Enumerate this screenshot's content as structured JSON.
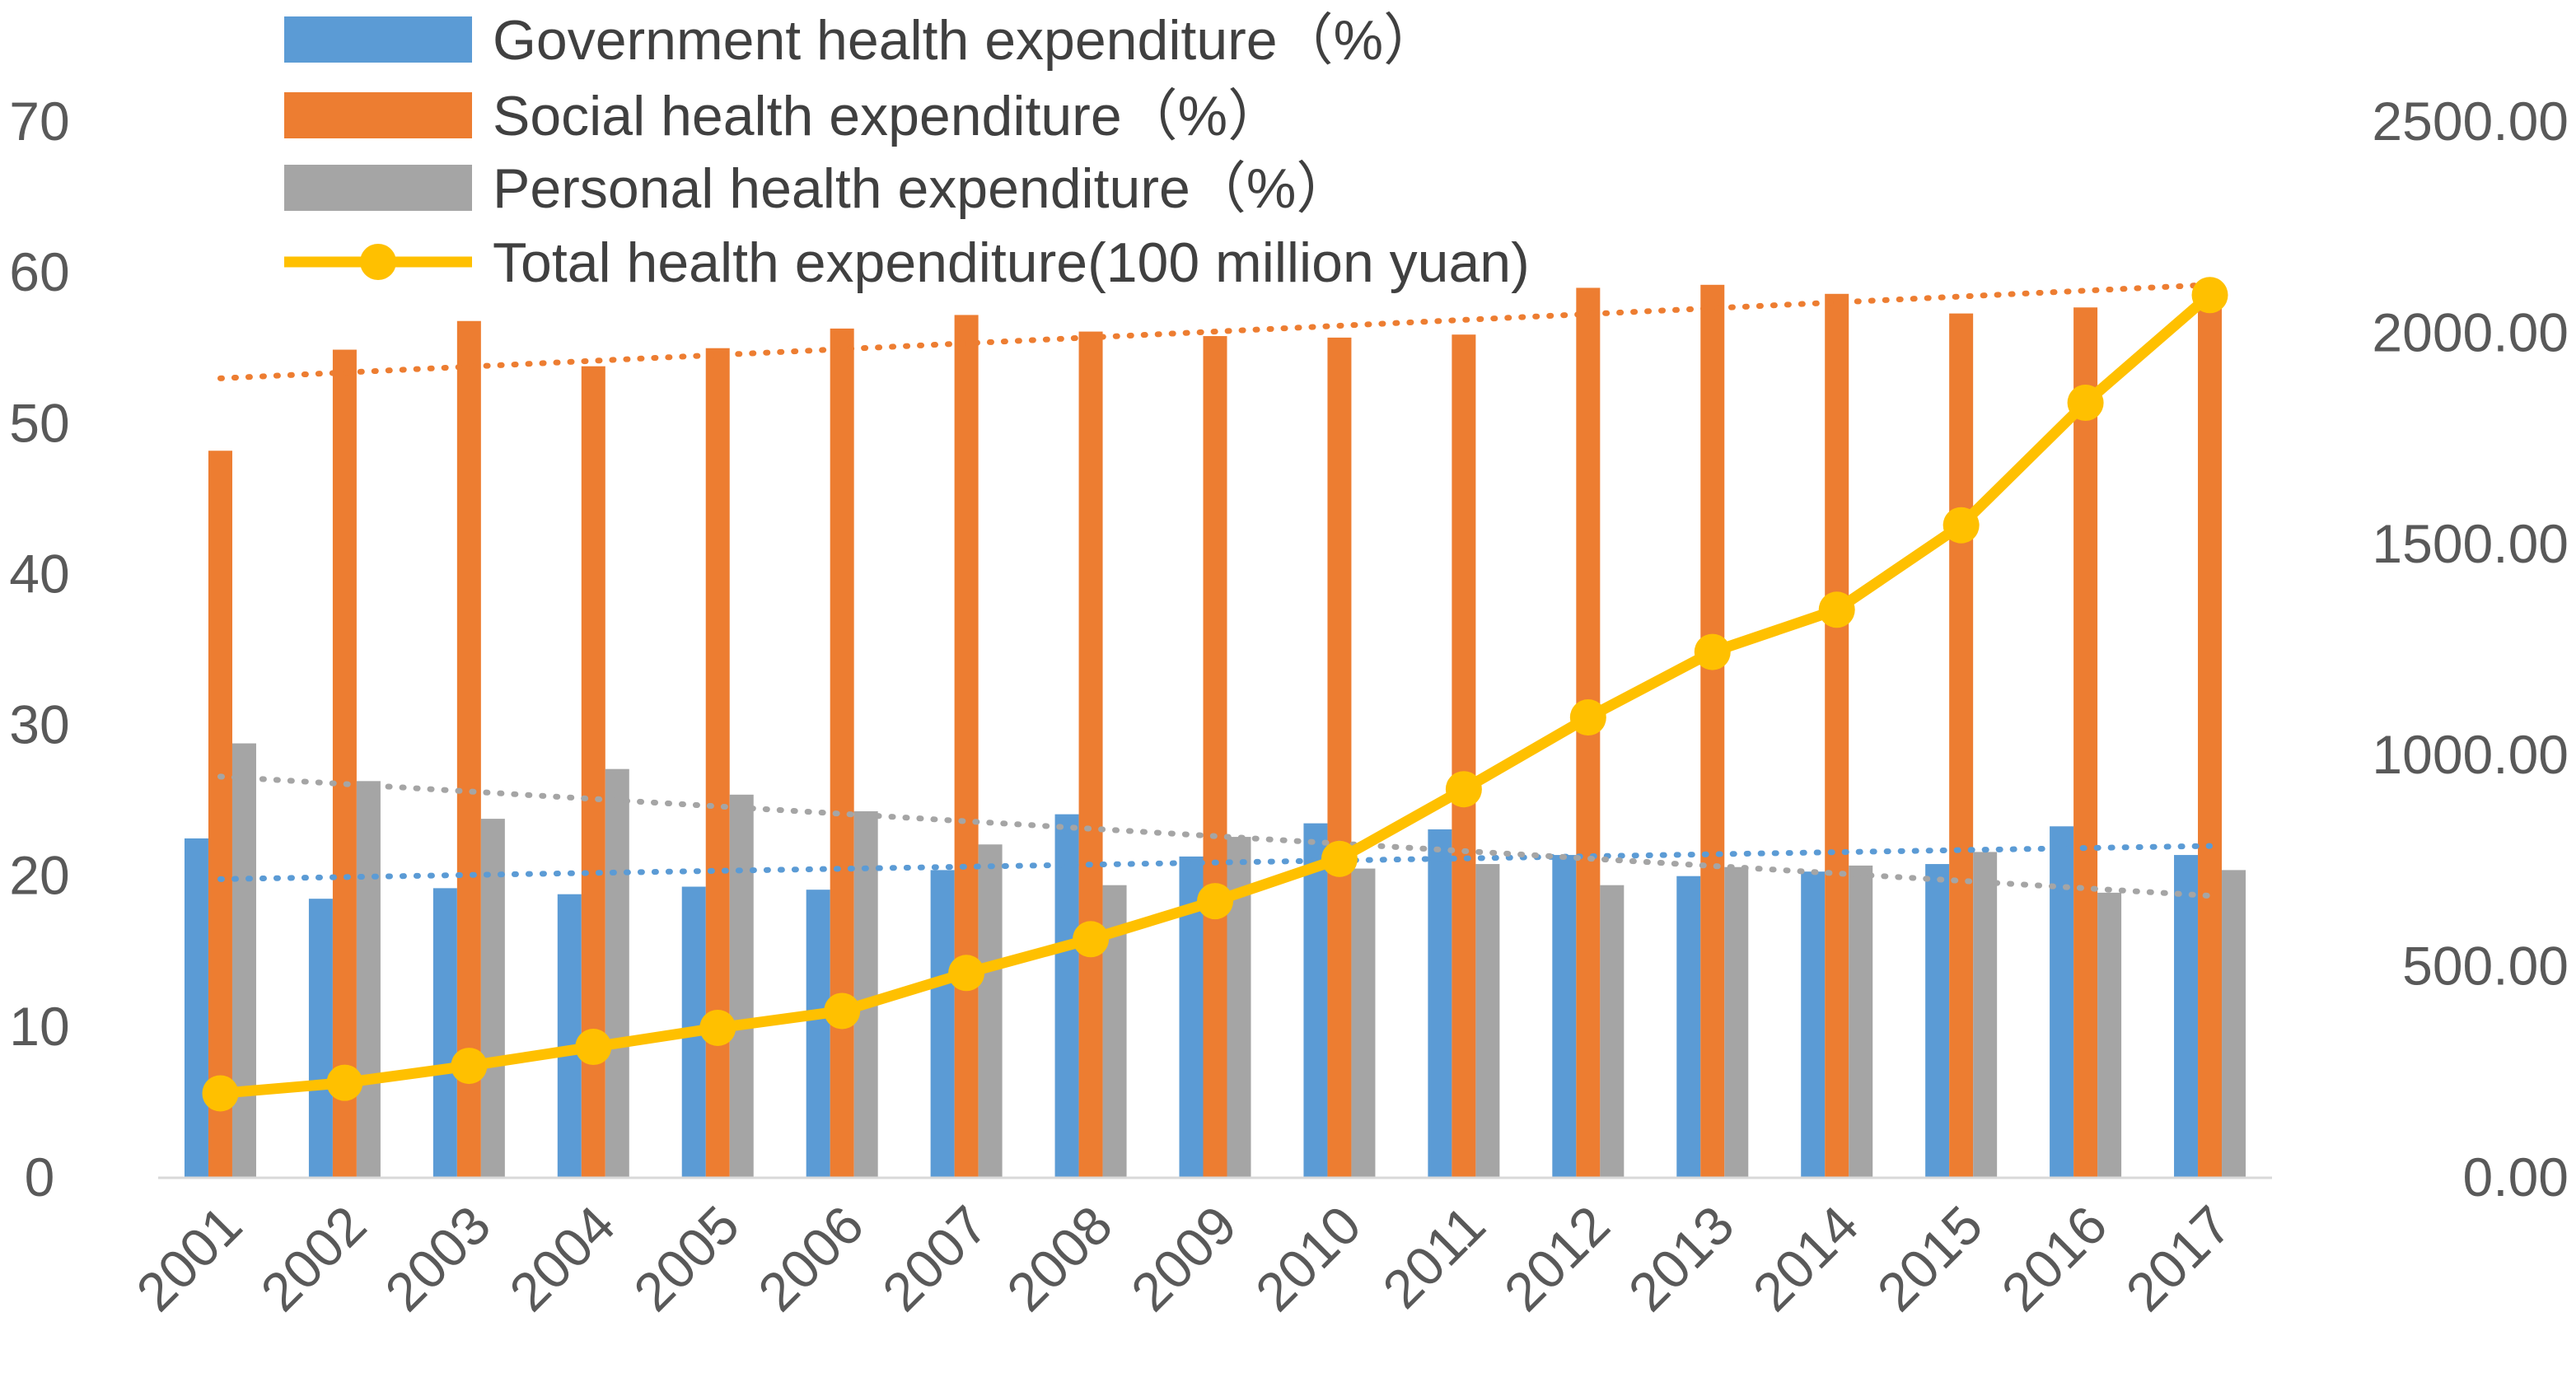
{
  "chart_data": {
    "type": "bar",
    "categories": [
      "2001",
      "2002",
      "2003",
      "2004",
      "2005",
      "2006",
      "2007",
      "2008",
      "2009",
      "2010",
      "2011",
      "2012",
      "2013",
      "2014",
      "2015",
      "2016",
      "2017"
    ],
    "series": [
      {
        "name": "Government health expenditure（%）",
        "type": "bar",
        "axis": "left",
        "color": "#5B9BD5",
        "values": [
          22.5,
          18.5,
          19.2,
          18.8,
          19.3,
          19.1,
          20.4,
          24.1,
          21.3,
          23.5,
          23.1,
          21.4,
          20.0,
          20.3,
          20.8,
          23.3,
          21.4
        ]
      },
      {
        "name": "Social health expenditure（%）",
        "type": "bar",
        "axis": "left",
        "color": "#ED7D31",
        "values": [
          48.2,
          54.9,
          56.8,
          53.8,
          55.0,
          56.3,
          57.2,
          56.1,
          55.8,
          55.7,
          55.9,
          59.0,
          59.2,
          58.6,
          57.3,
          57.7,
          58.9
        ]
      },
      {
        "name": "Personal health expenditure（%）",
        "type": "bar",
        "axis": "left",
        "color": "#A5A5A5",
        "values": [
          28.8,
          26.3,
          23.8,
          27.1,
          25.4,
          24.3,
          22.1,
          19.4,
          22.6,
          20.5,
          20.8,
          19.4,
          20.6,
          20.7,
          21.6,
          18.9,
          20.4
        ]
      },
      {
        "name": "Total health expenditure(100 million yuan)",
        "type": "line",
        "axis": "right",
        "color": "#FFC000",
        "values": [
          200,
          225,
          265,
          310,
          355,
          395,
          485,
          565,
          655,
          755,
          920,
          1090,
          1245,
          1345,
          1545,
          1835,
          2090
        ]
      }
    ],
    "trendlines": [
      {
        "series": "Social health expenditure（%）",
        "color": "#ED7D31",
        "start": 53.0,
        "end": 59.2
      },
      {
        "series": "Government health expenditure（%）",
        "color": "#5B9BD5",
        "start": 19.8,
        "end": 22.0
      },
      {
        "series": "Personal health expenditure（%）",
        "color": "#A5A5A5",
        "start": 26.6,
        "end": 18.7
      }
    ],
    "y_left": {
      "min": 0,
      "max": 70,
      "ticks": [
        "0",
        "10",
        "20",
        "30",
        "40",
        "50",
        "60",
        "70"
      ]
    },
    "y_right": {
      "min": 0,
      "max": 2500,
      "ticks": [
        "0.00",
        "500.00",
        "1000.00",
        "1500.00",
        "2000.00",
        "2500.00"
      ]
    },
    "grid": false,
    "legend_position": "top-left"
  }
}
